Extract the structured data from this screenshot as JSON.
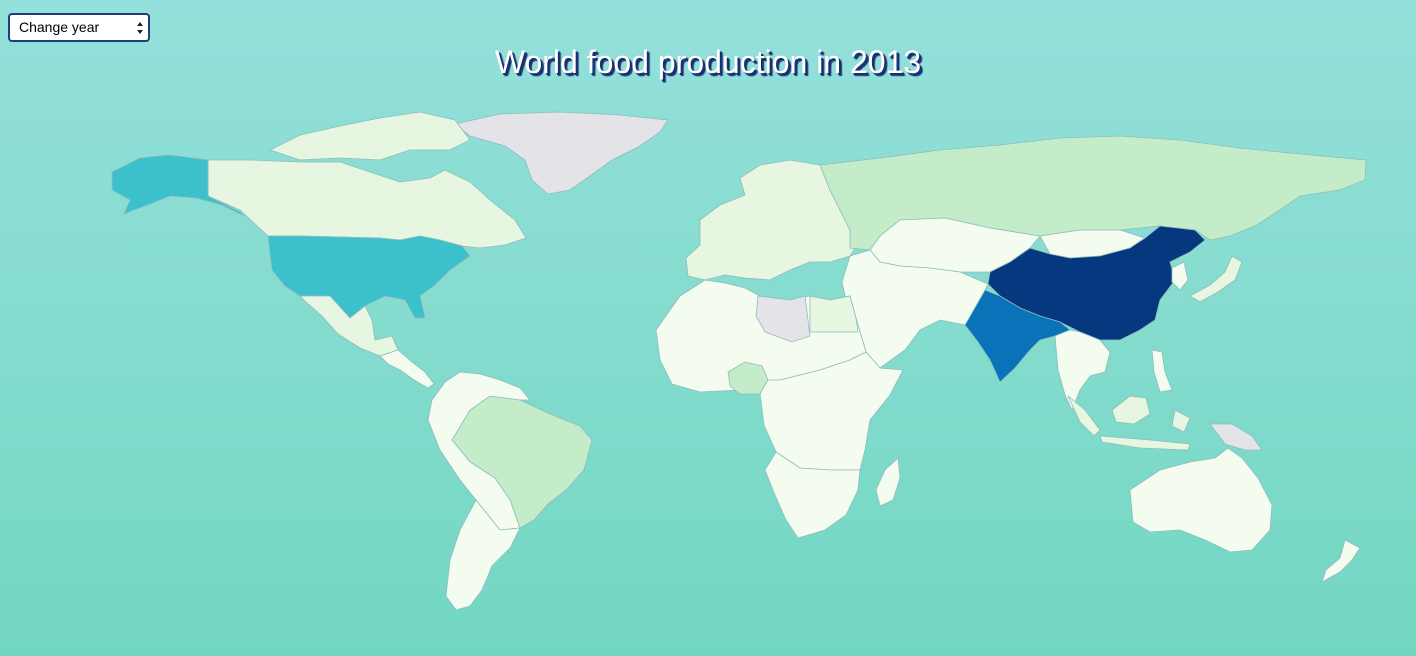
{
  "controls": {
    "year_select_label": "Change year"
  },
  "title": "World food production in 2013",
  "colors": {
    "no_data": "#e4e4e8",
    "level_1": "#f4fcf0",
    "level_2": "#e6f6e0",
    "level_3": "#c4ecc8",
    "level_4": "#3cc0cc",
    "level_5": "#0a72b8",
    "level_6": "#05387e"
  },
  "regions": [
    {
      "name": "Greenland",
      "level": "no_data"
    },
    {
      "name": "Canada",
      "level": "level_2"
    },
    {
      "name": "Alaska",
      "level": "level_4"
    },
    {
      "name": "United States",
      "level": "level_4"
    },
    {
      "name": "Mexico",
      "level": "level_2"
    },
    {
      "name": "Central America",
      "level": "level_1"
    },
    {
      "name": "Brazil",
      "level": "level_3"
    },
    {
      "name": "South America West",
      "level": "level_1"
    },
    {
      "name": "Argentina",
      "level": "level_1"
    },
    {
      "name": "Europe",
      "level": "level_2"
    },
    {
      "name": "Russia",
      "level": "level_3"
    },
    {
      "name": "Kazakhstan",
      "level": "level_1"
    },
    {
      "name": "Mongolia",
      "level": "level_1"
    },
    {
      "name": "China",
      "level": "level_6"
    },
    {
      "name": "India",
      "level": "level_5"
    },
    {
      "name": "Middle East",
      "level": "level_1"
    },
    {
      "name": "North Africa",
      "level": "level_1"
    },
    {
      "name": "Libya",
      "level": "no_data"
    },
    {
      "name": "Egypt",
      "level": "level_2"
    },
    {
      "name": "Nigeria",
      "level": "level_3"
    },
    {
      "name": "Central Africa",
      "level": "level_1"
    },
    {
      "name": "Southern Africa",
      "level": "level_1"
    },
    {
      "name": "Madagascar",
      "level": "level_1"
    },
    {
      "name": "Southeast Asia",
      "level": "level_1"
    },
    {
      "name": "Indonesia",
      "level": "level_2"
    },
    {
      "name": "Japan",
      "level": "level_2"
    },
    {
      "name": "Papua New Guinea",
      "level": "no_data"
    },
    {
      "name": "Australia",
      "level": "level_1"
    },
    {
      "name": "New Zealand",
      "level": "level_1"
    }
  ]
}
